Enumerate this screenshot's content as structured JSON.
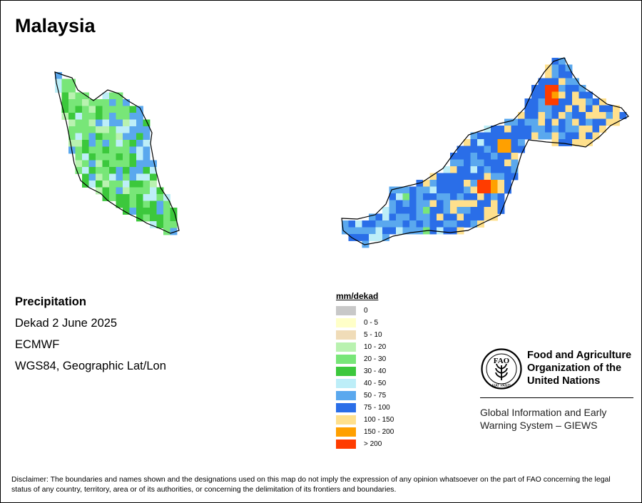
{
  "map": {
    "title": "Malaysia",
    "info": {
      "variable": "Precipitation",
      "period": "Dekad 2 June 2025",
      "source": "ECMWF",
      "projection": "WGS84, Geographic Lat/Lon"
    },
    "legend": {
      "title": "mm/dekad",
      "classes": [
        {
          "label": "0",
          "color": "#c8c8c8"
        },
        {
          "label": "0 - 5",
          "color": "#ffffc8"
        },
        {
          "label": "5 - 10",
          "color": "#f0dcb8"
        },
        {
          "label": "10 - 20",
          "color": "#b9f2b0"
        },
        {
          "label": "20 - 30",
          "color": "#78e678"
        },
        {
          "label": "30 - 40",
          "color": "#3cc83c"
        },
        {
          "label": "40 - 50",
          "color": "#bdeef8"
        },
        {
          "label": "50 - 75",
          "color": "#5aa8ee"
        },
        {
          "label": "75 - 100",
          "color": "#2a6ee8"
        },
        {
          "label": "100 - 150",
          "color": "#ffe08c"
        },
        {
          "label": "150 - 200",
          "color": "#ffa000"
        },
        {
          "label": "> 200",
          "color": "#ff3c00"
        }
      ]
    },
    "regions": [
      {
        "name": "Peninsular Malaysia",
        "dominant_class": "20 - 30"
      },
      {
        "name": "East Malaysia",
        "dominant_class": "75 - 100"
      }
    ],
    "org": {
      "name_lines": [
        "Food and Agriculture",
        "Organization of the",
        "United Nations"
      ],
      "system_lines": [
        "Global Information and Early",
        "Warning System – GIEWS"
      ],
      "logo_text": "FAO",
      "logo_motto": "FIAT PANIS"
    },
    "disclaimer": "Disclaimer: The boundaries and names shown and the designations used on this map do not imply the expression of any opinion whatsoever on the part of FAO concerning the legal status of any country, territory, area or of its authorities, or concerning the delimitation of its frontiers and boundaries."
  }
}
